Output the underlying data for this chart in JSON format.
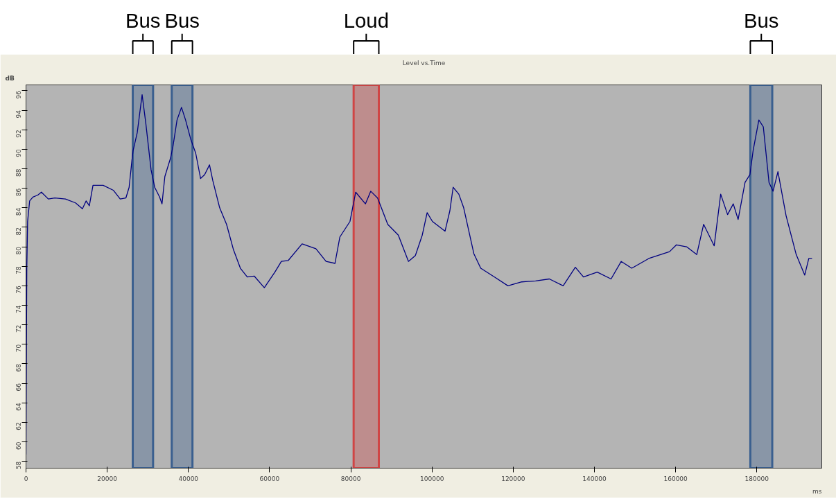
{
  "chart_data": {
    "type": "line",
    "title": "Level vs.Time",
    "xlabel": "ms",
    "ylabel": "dB",
    "xlim": [
      0,
      196000
    ],
    "ylim": [
      57.3,
      96.6
    ],
    "xticks": [
      0,
      20000,
      40000,
      60000,
      80000,
      100000,
      120000,
      140000,
      160000,
      180000
    ],
    "yticks": [
      58,
      60,
      62,
      64,
      66,
      68,
      70,
      72,
      74,
      76,
      78,
      80,
      82,
      84,
      86,
      88,
      90,
      92,
      94,
      96
    ],
    "grid": false,
    "line_style": "solid",
    "marker": "none",
    "bands": [
      {
        "axis": "x",
        "from": 26300,
        "to": 31300,
        "label": "Bus",
        "color": "#3a5f8f"
      },
      {
        "axis": "x",
        "from": 35900,
        "to": 41000,
        "label": "Bus",
        "color": "#3a5f8f"
      },
      {
        "axis": "x",
        "from": 80700,
        "to": 86900,
        "label": "Loud",
        "color": "#d04545"
      },
      {
        "axis": "x",
        "from": 178400,
        "to": 183800,
        "label": "Bus",
        "color": "#3a5f8f"
      }
    ],
    "series": [
      {
        "color": "#000080",
        "x": [
          0,
          200,
          400,
          900,
          1700,
          2900,
          3800,
          5500,
          7100,
          9700,
          12200,
          13900,
          14800,
          15600,
          16500,
          19000,
          21500,
          23200,
          24600,
          25400,
          26100,
          26400,
          27400,
          28600,
          29500,
          30800,
          31700,
          32900,
          33500,
          34200,
          35600,
          36200,
          37200,
          38300,
          39300,
          40600,
          41800,
          43000,
          44000,
          45200,
          46000,
          47700,
          49400,
          51100,
          52800,
          54500,
          56200,
          58700,
          61300,
          62900,
          64600,
          68000,
          71400,
          73900,
          76100,
          77300,
          79800,
          81200,
          83600,
          84900,
          86600,
          89100,
          91700,
          94200,
          95900,
          97600,
          98800,
          100100,
          103200,
          104400,
          105200,
          106600,
          107800,
          110300,
          112000,
          115400,
          118700,
          122100,
          125500,
          128900,
          132300,
          135300,
          137300,
          140700,
          144100,
          146600,
          149200,
          153400,
          158500,
          160200,
          162700,
          165200,
          166900,
          169500,
          171100,
          172800,
          174200,
          175400,
          177100,
          178300,
          179100,
          180500,
          181600,
          183000,
          184000,
          185200,
          187200,
          189700,
          191800,
          192800,
          193600
        ],
        "values": [
          58.7,
          77.8,
          82.6,
          84.7,
          85.1,
          85.3,
          85.6,
          84.9,
          85.0,
          84.9,
          84.5,
          83.9,
          84.7,
          84.2,
          86.3,
          86.3,
          85.8,
          84.9,
          85.0,
          86.1,
          88.9,
          89.9,
          91.7,
          95.6,
          92.7,
          87.9,
          86.1,
          85.1,
          84.4,
          87.2,
          89.1,
          90.3,
          93.0,
          94.3,
          93.0,
          91.0,
          89.6,
          87.0,
          87.4,
          88.4,
          86.8,
          84.0,
          82.3,
          79.7,
          77.8,
          76.9,
          77.0,
          75.8,
          77.4,
          78.5,
          78.6,
          80.3,
          79.8,
          78.5,
          78.3,
          81.0,
          82.6,
          85.6,
          84.4,
          85.7,
          85.0,
          82.3,
          81.2,
          78.5,
          79.1,
          81.2,
          83.5,
          82.6,
          81.6,
          83.7,
          86.1,
          85.4,
          84.0,
          79.3,
          77.8,
          76.9,
          76.0,
          76.4,
          76.5,
          76.7,
          76.0,
          77.9,
          76.9,
          77.4,
          76.7,
          78.5,
          77.8,
          78.8,
          79.5,
          80.2,
          80.0,
          79.2,
          82.3,
          80.1,
          85.4,
          83.3,
          84.4,
          82.8,
          86.6,
          87.4,
          89.9,
          93.0,
          92.3,
          86.6,
          85.7,
          87.7,
          83.2,
          79.2,
          77.1,
          78.8,
          78.8
        ]
      }
    ]
  }
}
